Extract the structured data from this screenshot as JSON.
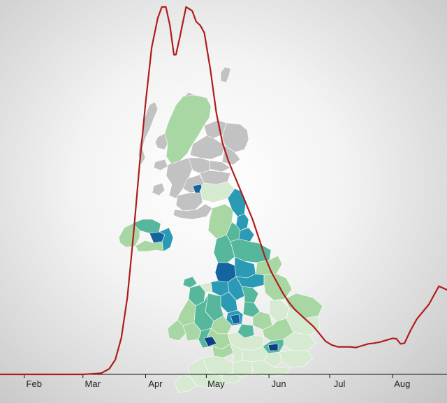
{
  "chart_data": {
    "type": "line",
    "title": "",
    "xlabel": "",
    "ylabel": "",
    "x_ticks": [
      "Feb",
      "Mar",
      "Apr",
      "May",
      "Jun",
      "Jul",
      "Aug"
    ],
    "xlim": [
      "2020-01-20",
      "2020-08-28"
    ],
    "ylim": [
      0,
      100
    ],
    "grid": false,
    "legend": "none",
    "series": [
      {
        "color": "#b01c1c",
        "points": [
          [
            "2020-01-20",
            0
          ],
          [
            "2020-02-15",
            0
          ],
          [
            "2020-03-01",
            0
          ],
          [
            "2020-03-10",
            0.3
          ],
          [
            "2020-03-14",
            1.5
          ],
          [
            "2020-03-17",
            4
          ],
          [
            "2020-03-20",
            10
          ],
          [
            "2020-03-23",
            21
          ],
          [
            "2020-03-26",
            38
          ],
          [
            "2020-03-29",
            57
          ],
          [
            "2020-04-01",
            74
          ],
          [
            "2020-04-04",
            89
          ],
          [
            "2020-04-07",
            97
          ],
          [
            "2020-04-09",
            100
          ],
          [
            "2020-04-11",
            100
          ],
          [
            "2020-04-13",
            95
          ],
          [
            "2020-04-15",
            87
          ],
          [
            "2020-04-16",
            87
          ],
          [
            "2020-04-18",
            92
          ],
          [
            "2020-04-21",
            100
          ],
          [
            "2020-04-24",
            99
          ],
          [
            "2020-04-26",
            96
          ],
          [
            "2020-04-28",
            95
          ],
          [
            "2020-04-30",
            93
          ],
          [
            "2020-05-03",
            83
          ],
          [
            "2020-05-06",
            71
          ],
          [
            "2020-05-09",
            63
          ],
          [
            "2020-05-12",
            58
          ],
          [
            "2020-05-15",
            54
          ],
          [
            "2020-05-18",
            50
          ],
          [
            "2020-05-21",
            46
          ],
          [
            "2020-05-24",
            42
          ],
          [
            "2020-05-27",
            37
          ],
          [
            "2020-05-30",
            32
          ],
          [
            "2020-06-02",
            28
          ],
          [
            "2020-06-05",
            25
          ],
          [
            "2020-06-08",
            22
          ],
          [
            "2020-06-11",
            19.5
          ],
          [
            "2020-06-14",
            17.5
          ],
          [
            "2020-06-17",
            16
          ],
          [
            "2020-06-20",
            14.5
          ],
          [
            "2020-06-23",
            13
          ],
          [
            "2020-06-26",
            11
          ],
          [
            "2020-06-29",
            9
          ],
          [
            "2020-07-02",
            8
          ],
          [
            "2020-07-05",
            7.5
          ],
          [
            "2020-07-08",
            7.5
          ],
          [
            "2020-07-11",
            7.5
          ],
          [
            "2020-07-14",
            7.3
          ],
          [
            "2020-07-17",
            7.8
          ],
          [
            "2020-07-20",
            8.3
          ],
          [
            "2020-07-23",
            8.5
          ],
          [
            "2020-07-26",
            8.8
          ],
          [
            "2020-07-29",
            9.3
          ],
          [
            "2020-08-01",
            9.8
          ],
          [
            "2020-08-03",
            9.7
          ],
          [
            "2020-08-05",
            8.3
          ],
          [
            "2020-08-07",
            8.5
          ],
          [
            "2020-08-10",
            12
          ],
          [
            "2020-08-13",
            15
          ],
          [
            "2020-08-16",
            17
          ],
          [
            "2020-08-19",
            19
          ],
          [
            "2020-08-22",
            22
          ],
          [
            "2020-08-24",
            24
          ],
          [
            "2020-08-26",
            23.5
          ],
          [
            "2020-08-28",
            23
          ]
        ]
      }
    ]
  },
  "map": {
    "colors": {
      "no_data": "#c2c2c2",
      "very_low": "#d6e9d1",
      "low": "#a9d7a4",
      "medium": "#57b79d",
      "high": "#2b9ab4",
      "very_high": "#13649f",
      "highest": "#0c3f86"
    }
  }
}
